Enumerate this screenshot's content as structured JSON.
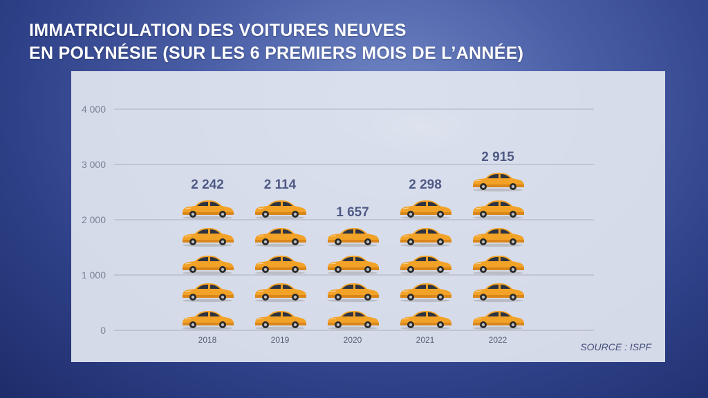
{
  "title": {
    "line1": "IMMATRICULATION DES VOITURES NEUVES",
    "line2": "EN POLYNÉSIE (SUR LES 6 PREMIERS MOIS DE L’ANNÉE)"
  },
  "source": "SOURCE : ISPF",
  "chart_data": {
    "type": "bar",
    "categories": [
      "2018",
      "2019",
      "2020",
      "2021",
      "2022"
    ],
    "values": [
      2242,
      2114,
      1657,
      2298,
      2915
    ],
    "value_labels": [
      "2 242",
      "2 114",
      "1 657",
      "2 298",
      "2 915"
    ],
    "ylim": [
      0,
      4000
    ],
    "yticks": [
      0,
      1000,
      2000,
      3000,
      4000
    ],
    "ytick_labels": [
      "0",
      "1 000",
      "2 000",
      "3 000",
      "4 000"
    ],
    "grid": true,
    "mark": "car-icon",
    "colors": {
      "car_body": "#f2a227",
      "value_label": "#4f5a85",
      "grid": "#a9afbf"
    }
  }
}
